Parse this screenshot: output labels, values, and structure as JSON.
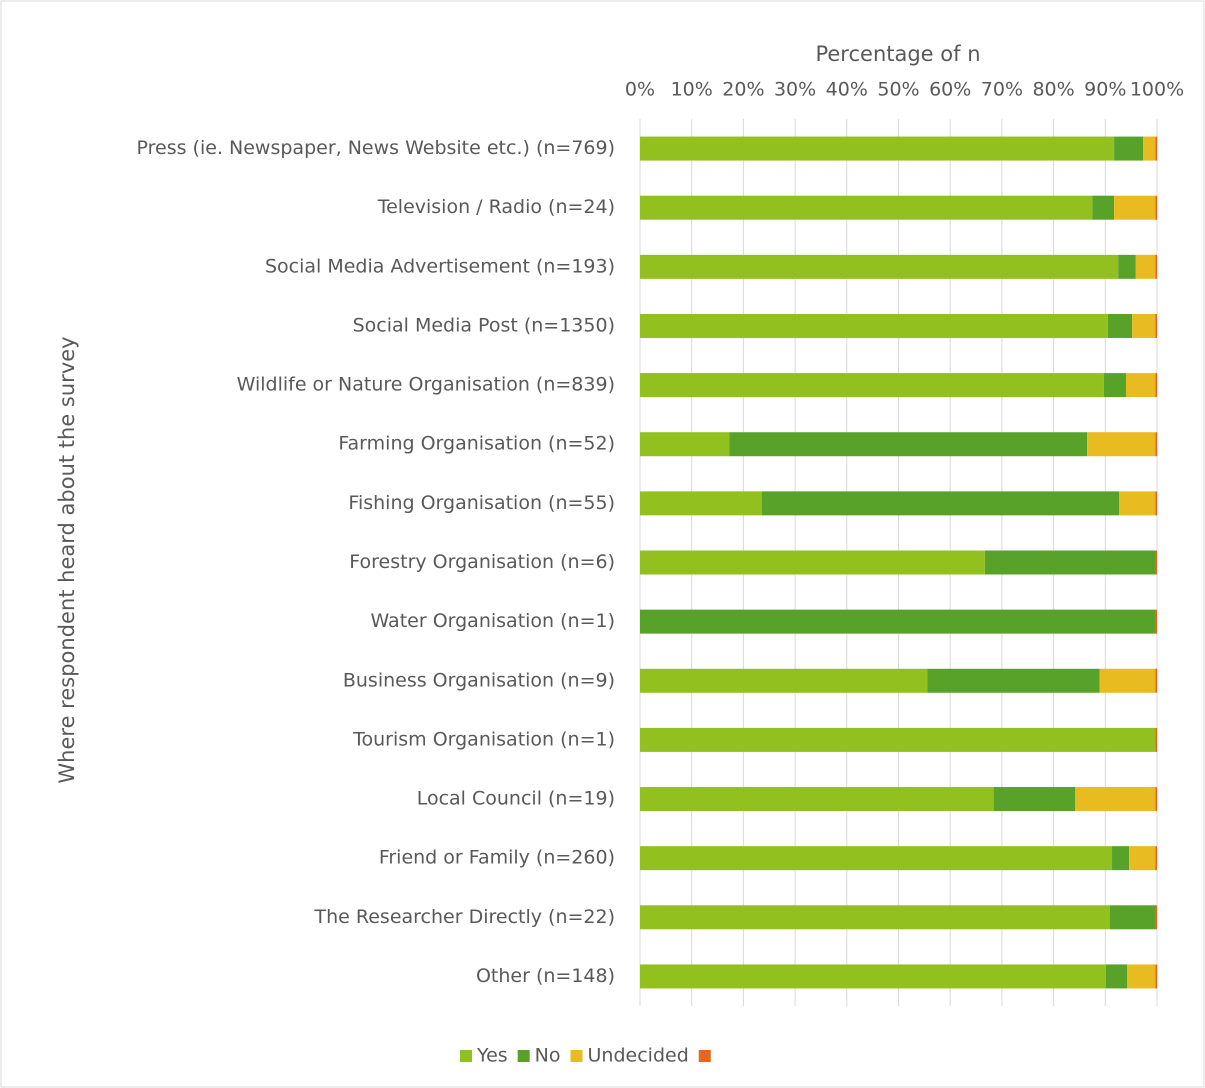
{
  "chart_data": {
    "type": "stacked_bar_horizontal",
    "xlabel": "Percentage of n",
    "ylabel": "Where respondent heard about the survey",
    "categories": [
      "Press (ie. Newspaper, News Website etc.) (n=769)",
      "Television / Radio (n=24)",
      "Social Media Advertisement (n=193)",
      "Social Media Post (n=1350)",
      "Wildlife or Nature Organisation (n=839)",
      "Farming Organisation (n=52)",
      "Fishing Organisation (n=55)",
      "Forestry Organisation (n=6)",
      "Water Organisation (n=1)",
      "Business Organisation (n=9)",
      "Tourism Organisation (n=1)",
      "Local Council (n=19)",
      "Friend or Family (n=260)",
      "The Researcher Directly (n=22)",
      "Other (n=148)"
    ],
    "series": [
      {
        "name": "Yes",
        "color": "#92c01f",
        "values": [
          91.7,
          87.5,
          92.5,
          90.5,
          89.7,
          17.3,
          23.6,
          66.7,
          0,
          55.6,
          99.7,
          68.4,
          91.3,
          90.9,
          90.1
        ]
      },
      {
        "name": "No",
        "color": "#58a22a",
        "values": [
          5.6,
          4.2,
          3.4,
          4.7,
          4.3,
          69.2,
          69.1,
          33.0,
          99.7,
          33.3,
          0,
          15.8,
          3.3,
          8.8,
          4.1
        ]
      },
      {
        "name": "Undecided",
        "color": "#e8bb20",
        "values": [
          2.4,
          8.0,
          3.8,
          4.5,
          5.7,
          13.2,
          7.0,
          0,
          0,
          10.8,
          0,
          15.5,
          5.1,
          0,
          5.5
        ]
      },
      {
        "name": null,
        "color": "#e8651c",
        "values": [
          0.3,
          0.3,
          0.3,
          0.3,
          0.3,
          0.3,
          0.3,
          0.3,
          0.3,
          0.3,
          0.3,
          0.3,
          0.3,
          0.3,
          0.3
        ]
      }
    ],
    "xlim": [
      0,
      100
    ],
    "xticks": [
      {
        "value": 0,
        "label": "0%"
      },
      {
        "value": 10,
        "label": "10%"
      },
      {
        "value": 20,
        "label": "20%"
      },
      {
        "value": 30,
        "label": "30%"
      },
      {
        "value": 40,
        "label": "40%"
      },
      {
        "value": 50,
        "label": "50%"
      },
      {
        "value": 60,
        "label": "60%"
      },
      {
        "value": 70,
        "label": "70%"
      },
      {
        "value": 80,
        "label": "80%"
      },
      {
        "value": 90,
        "label": "90%"
      },
      {
        "value": 100,
        "label": "100%"
      }
    ],
    "grid": true,
    "legend": "bottom"
  }
}
